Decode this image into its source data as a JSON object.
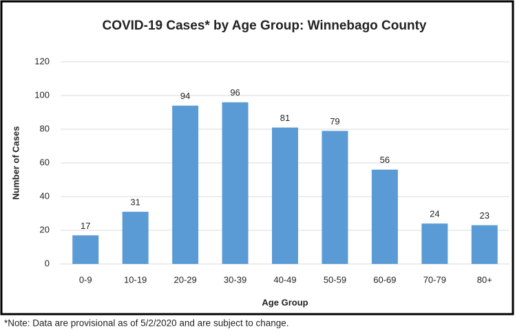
{
  "chart_data": {
    "type": "bar",
    "title": "COVID-19 Cases* by Age Group: Winnebago County",
    "x_label": "Age Group",
    "y_label": "Number of Cases",
    "categories": [
      "0-9",
      "10-19",
      "20-29",
      "30-39",
      "40-49",
      "50-59",
      "60-69",
      "70-79",
      "80+"
    ],
    "values": [
      17,
      31,
      94,
      96,
      81,
      79,
      56,
      24,
      23
    ],
    "color": "#5b9bd5",
    "ylim": [
      0,
      120
    ],
    "yticks": [
      0,
      20,
      40,
      60,
      80,
      100,
      120
    ],
    "grid": true,
    "note": "*Note: Data are provisional as of 5/2/2020 and are subject to change."
  }
}
